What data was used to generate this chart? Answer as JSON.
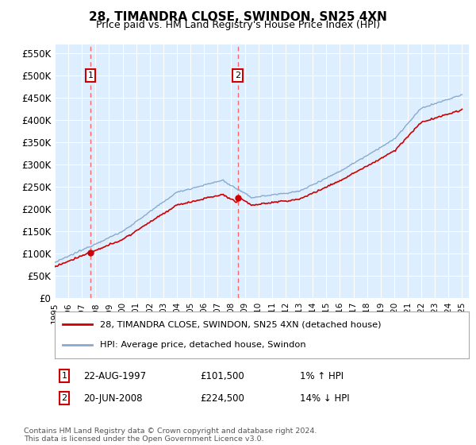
{
  "title": "28, TIMANDRA CLOSE, SWINDON, SN25 4XN",
  "subtitle": "Price paid vs. HM Land Registry's House Price Index (HPI)",
  "ylim": [
    0,
    570000
  ],
  "yticks": [
    0,
    50000,
    100000,
    150000,
    200000,
    250000,
    300000,
    350000,
    400000,
    450000,
    500000,
    550000
  ],
  "ytick_labels": [
    "£0",
    "£50K",
    "£100K",
    "£150K",
    "£200K",
    "£250K",
    "£300K",
    "£350K",
    "£400K",
    "£450K",
    "£500K",
    "£550K"
  ],
  "sale1_year": 1997.64,
  "sale1_price": 101500,
  "sale1_label": "1",
  "sale1_date": "22-AUG-1997",
  "sale1_price_str": "£101,500",
  "sale1_hpi_diff": "1% ↑ HPI",
  "sale2_year": 2008.47,
  "sale2_price": 224500,
  "sale2_label": "2",
  "sale2_date": "20-JUN-2008",
  "sale2_price_str": "£224,500",
  "sale2_hpi_diff": "14% ↓ HPI",
  "line_color_property": "#cc0000",
  "line_color_hpi": "#88aacc",
  "bg_plot": "#ddeeff",
  "bg_fig": "#ffffff",
  "grid_color": "#ffffff",
  "dashed_line_color": "#ff6666",
  "legend_label_property": "28, TIMANDRA CLOSE, SWINDON, SN25 4XN (detached house)",
  "legend_label_hpi": "HPI: Average price, detached house, Swindon",
  "footer": "Contains HM Land Registry data © Crown copyright and database right 2024.\nThis data is licensed under the Open Government Licence v3.0."
}
